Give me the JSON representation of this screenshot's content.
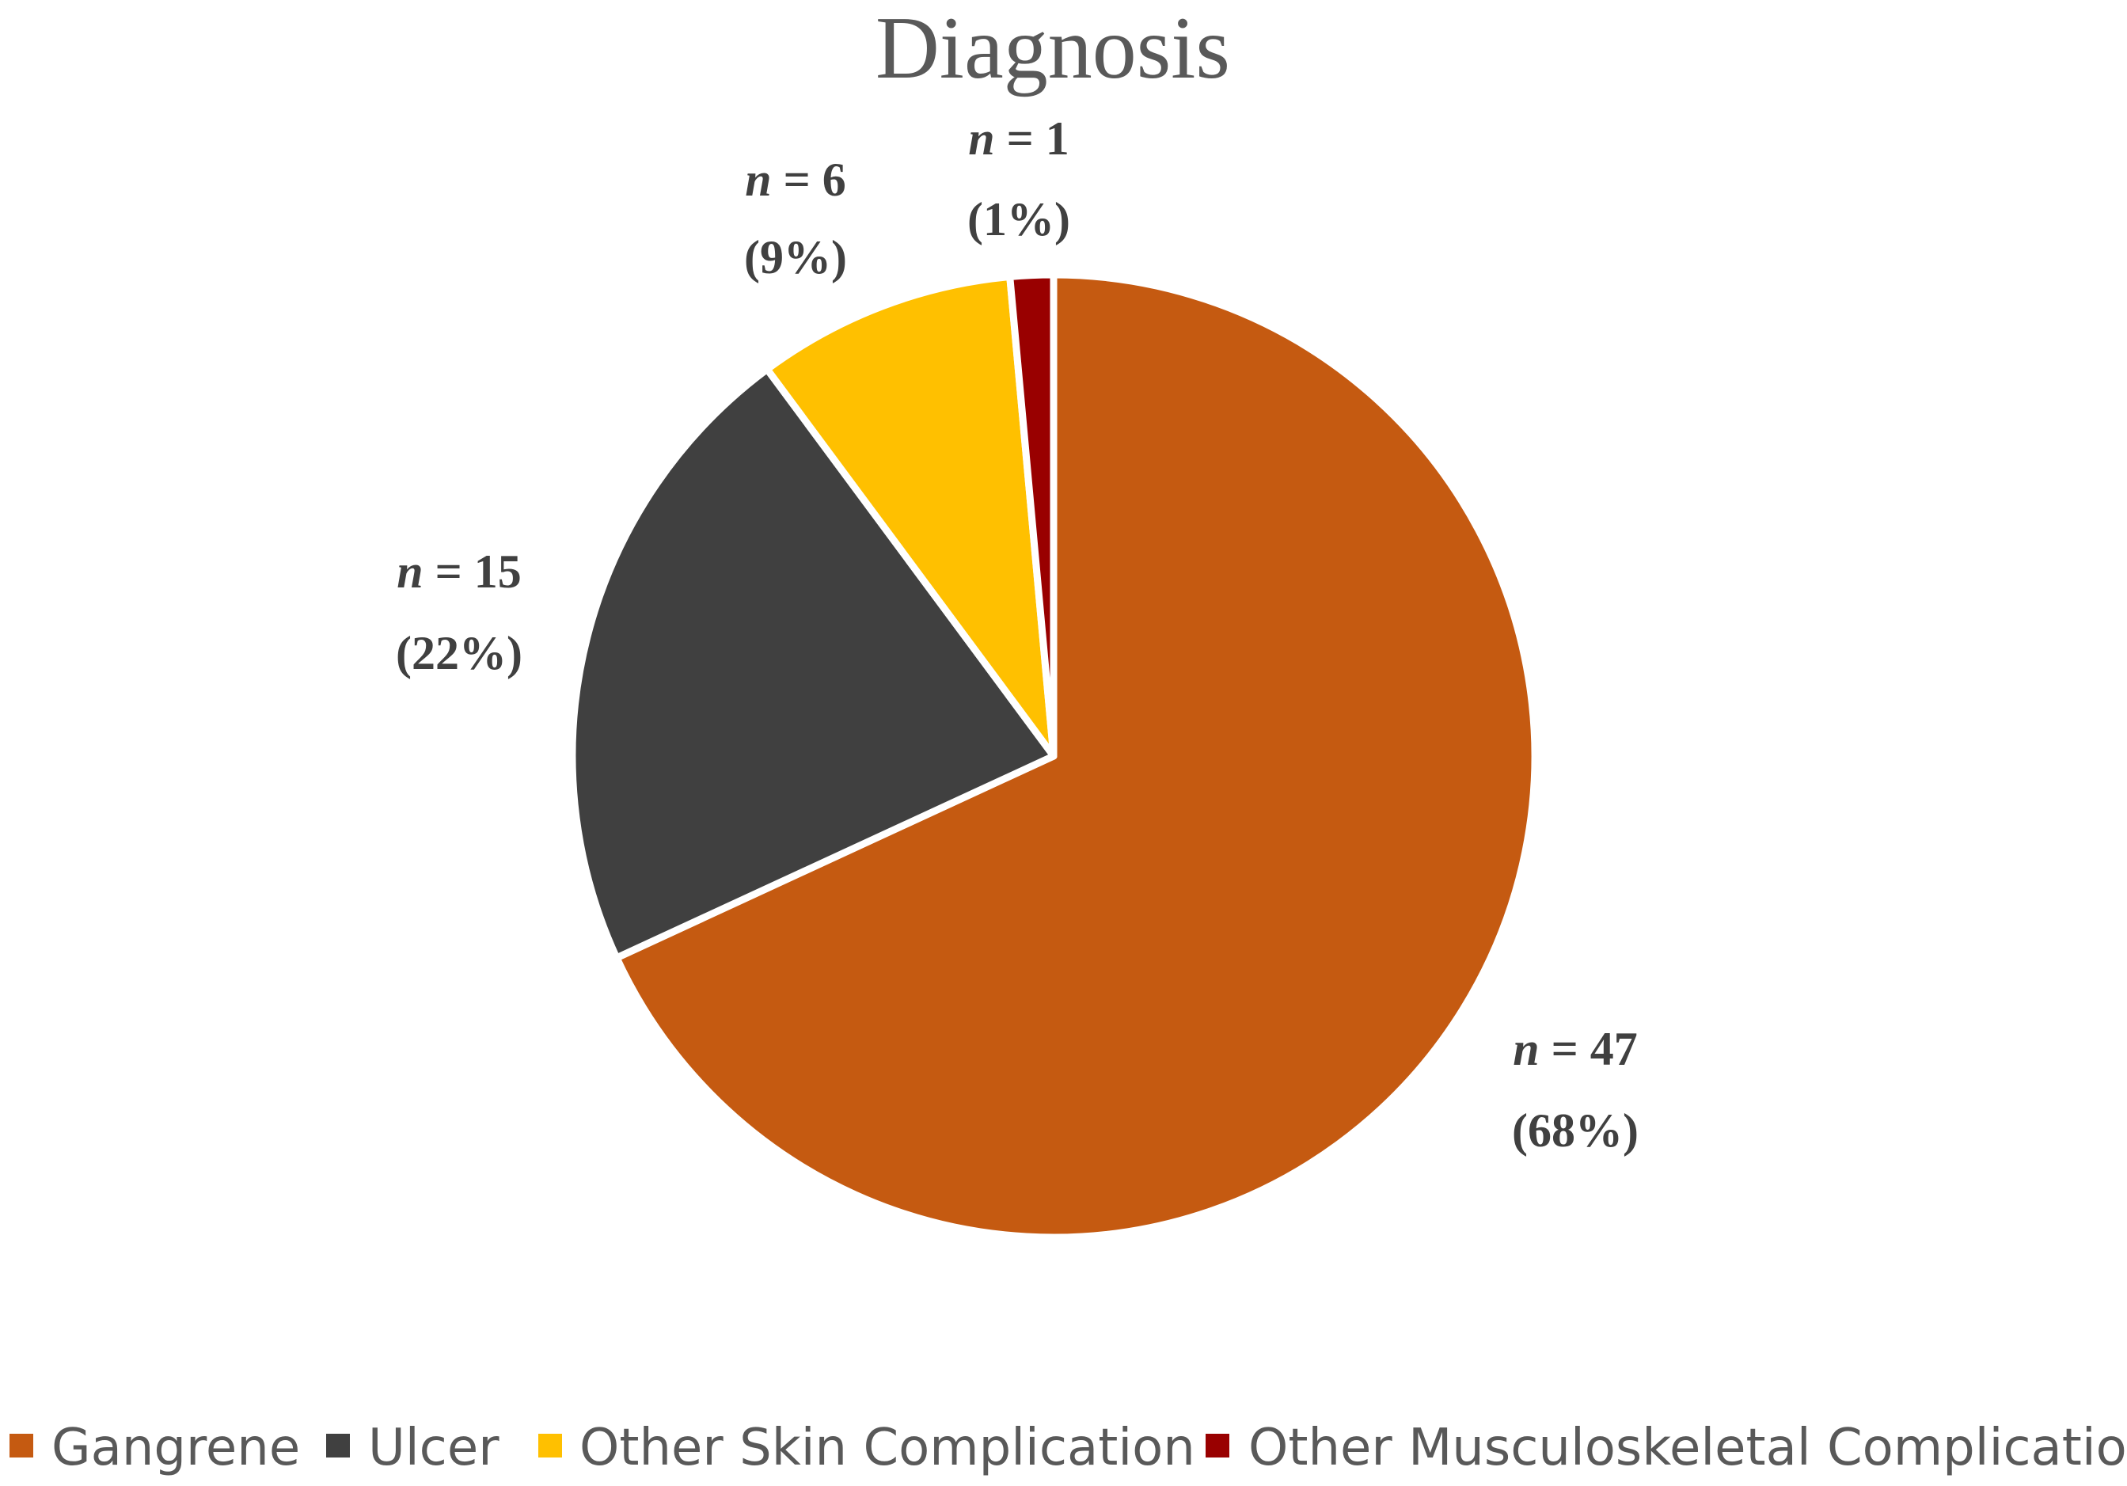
{
  "chart_data": {
    "type": "pie",
    "title": "Diagnosis",
    "start_angle_deg": 0,
    "direction": "clockwise",
    "legend_position": "bottom",
    "slices": [
      {
        "name": "Gangrene",
        "value": 47,
        "percent_label": "(68%)",
        "n_prefix": "n",
        "n_suffix": " = 47",
        "color": "#C55A11"
      },
      {
        "name": "Ulcer",
        "value": 15,
        "percent_label": "(22%)",
        "n_prefix": "n",
        "n_suffix": " = 15",
        "color": "#404040"
      },
      {
        "name": "Other Skin Complication",
        "value": 6,
        "percent_label": "(9%)",
        "n_prefix": "n",
        "n_suffix": " = 6",
        "color": "#FFC000"
      },
      {
        "name": "Other Musculoskeletal Complication",
        "value": 1,
        "percent_label": "(1%)",
        "n_prefix": "n",
        "n_suffix": " = 1",
        "color": "#990000"
      }
    ]
  }
}
